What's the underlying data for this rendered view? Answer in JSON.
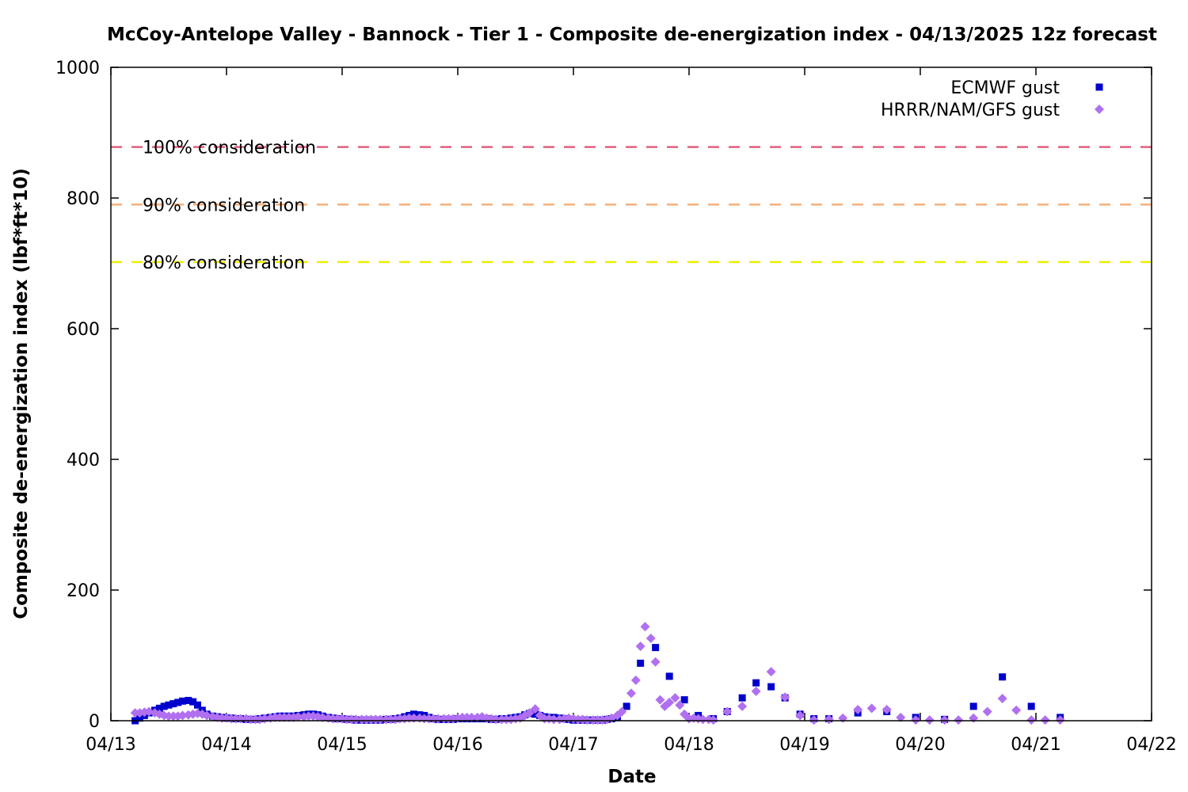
{
  "chart_data": {
    "type": "scatter",
    "title": "McCoy-Antelope Valley - Bannock - Tier 1 - Composite de-energization index - 04/13/2025 12z forecast",
    "xlabel": "Date",
    "ylabel": "Composite de-energization index (lbf*ft*10)",
    "xlim": [
      "04/13",
      "04/22"
    ],
    "ylim": [
      0,
      1000
    ],
    "x_ticks": [
      "04/13",
      "04/14",
      "04/15",
      "04/16",
      "04/17",
      "04/18",
      "04/19",
      "04/20",
      "04/21",
      "04/22"
    ],
    "y_ticks": [
      0,
      200,
      400,
      600,
      800,
      1000
    ],
    "legend_position": "top-right",
    "x_units": "days after 04/13 00z",
    "reference_lines": [
      {
        "label": "100% consideration",
        "value": 878,
        "color": "#e0607e"
      },
      {
        "label": "90% consideration",
        "value": 790,
        "color": "#f5b07a"
      },
      {
        "label": "80% consideration",
        "value": 702,
        "color": "#eeee00"
      }
    ],
    "series": [
      {
        "name": "ECMWF gust",
        "marker": "square",
        "color": "#0000cc",
        "points": [
          [
            0.21,
            0
          ],
          [
            0.25,
            4
          ],
          [
            0.29,
            8
          ],
          [
            0.33,
            12
          ],
          [
            0.38,
            16
          ],
          [
            0.42,
            19
          ],
          [
            0.46,
            22
          ],
          [
            0.5,
            24
          ],
          [
            0.54,
            26
          ],
          [
            0.58,
            28
          ],
          [
            0.62,
            30
          ],
          [
            0.67,
            31
          ],
          [
            0.71,
            29
          ],
          [
            0.75,
            24
          ],
          [
            0.79,
            16
          ],
          [
            0.83,
            10
          ],
          [
            0.88,
            7
          ],
          [
            0.92,
            6
          ],
          [
            0.96,
            5
          ],
          [
            1.0,
            4
          ],
          [
            1.04,
            4
          ],
          [
            1.08,
            3
          ],
          [
            1.12,
            3
          ],
          [
            1.17,
            2
          ],
          [
            1.21,
            2
          ],
          [
            1.25,
            2
          ],
          [
            1.29,
            3
          ],
          [
            1.33,
            4
          ],
          [
            1.38,
            5
          ],
          [
            1.42,
            6
          ],
          [
            1.46,
            7
          ],
          [
            1.5,
            7
          ],
          [
            1.54,
            7
          ],
          [
            1.58,
            7
          ],
          [
            1.62,
            8
          ],
          [
            1.67,
            9
          ],
          [
            1.71,
            10
          ],
          [
            1.75,
            10
          ],
          [
            1.79,
            9
          ],
          [
            1.83,
            7
          ],
          [
            1.88,
            5
          ],
          [
            1.92,
            4
          ],
          [
            1.96,
            3
          ],
          [
            2.0,
            3
          ],
          [
            2.04,
            2
          ],
          [
            2.08,
            2
          ],
          [
            2.12,
            1
          ],
          [
            2.17,
            1
          ],
          [
            2.21,
            1
          ],
          [
            2.25,
            1
          ],
          [
            2.29,
            1
          ],
          [
            2.33,
            1
          ],
          [
            2.38,
            2
          ],
          [
            2.42,
            2
          ],
          [
            2.46,
            3
          ],
          [
            2.5,
            4
          ],
          [
            2.54,
            6
          ],
          [
            2.58,
            8
          ],
          [
            2.62,
            10
          ],
          [
            2.67,
            9
          ],
          [
            2.71,
            8
          ],
          [
            2.75,
            5
          ],
          [
            2.79,
            3
          ],
          [
            2.83,
            2
          ],
          [
            2.88,
            2
          ],
          [
            2.92,
            2
          ],
          [
            2.96,
            2
          ],
          [
            3.0,
            3
          ],
          [
            3.04,
            3
          ],
          [
            3.08,
            3
          ],
          [
            3.12,
            3
          ],
          [
            3.17,
            3
          ],
          [
            3.21,
            3
          ],
          [
            3.25,
            3
          ],
          [
            3.29,
            2
          ],
          [
            3.33,
            2
          ],
          [
            3.38,
            3
          ],
          [
            3.42,
            3
          ],
          [
            3.46,
            4
          ],
          [
            3.5,
            5
          ],
          [
            3.54,
            6
          ],
          [
            3.58,
            9
          ],
          [
            3.62,
            11
          ],
          [
            3.67,
            10
          ],
          [
            3.71,
            8
          ],
          [
            3.75,
            6
          ],
          [
            3.79,
            5
          ],
          [
            3.83,
            5
          ],
          [
            3.88,
            4
          ],
          [
            3.92,
            3
          ],
          [
            3.96,
            2
          ],
          [
            4.0,
            1
          ],
          [
            4.04,
            1
          ],
          [
            4.08,
            1
          ],
          [
            4.12,
            1
          ],
          [
            4.17,
            1
          ],
          [
            4.21,
            1
          ],
          [
            4.25,
            1
          ],
          [
            4.29,
            2
          ],
          [
            4.33,
            3
          ],
          [
            4.38,
            5
          ],
          [
            4.46,
            22
          ],
          [
            4.58,
            88
          ],
          [
            4.71,
            112
          ],
          [
            4.83,
            68
          ],
          [
            4.96,
            32
          ],
          [
            5.08,
            8
          ],
          [
            5.21,
            3
          ],
          [
            5.33,
            14
          ],
          [
            5.46,
            35
          ],
          [
            5.58,
            58
          ],
          [
            5.71,
            52
          ],
          [
            5.83,
            35
          ],
          [
            5.96,
            10
          ],
          [
            6.08,
            3
          ],
          [
            6.21,
            3
          ],
          [
            6.46,
            12
          ],
          [
            6.71,
            14
          ],
          [
            6.96,
            5
          ],
          [
            7.21,
            2
          ],
          [
            7.46,
            22
          ],
          [
            7.71,
            67
          ],
          [
            7.96,
            22
          ],
          [
            8.21,
            5
          ]
        ]
      },
      {
        "name": "HRRR/NAM/GFS gust",
        "marker": "diamond",
        "color": "#b070f0",
        "points": [
          [
            0.21,
            12
          ],
          [
            0.25,
            12
          ],
          [
            0.29,
            13
          ],
          [
            0.33,
            14
          ],
          [
            0.38,
            12
          ],
          [
            0.42,
            10
          ],
          [
            0.46,
            8
          ],
          [
            0.5,
            7
          ],
          [
            0.54,
            7
          ],
          [
            0.58,
            7
          ],
          [
            0.62,
            8
          ],
          [
            0.67,
            9
          ],
          [
            0.71,
            10
          ],
          [
            0.75,
            11
          ],
          [
            0.79,
            10
          ],
          [
            0.83,
            8
          ],
          [
            0.88,
            6
          ],
          [
            0.92,
            5
          ],
          [
            0.96,
            4
          ],
          [
            1.0,
            4
          ],
          [
            1.04,
            3
          ],
          [
            1.08,
            3
          ],
          [
            1.12,
            3
          ],
          [
            1.17,
            3
          ],
          [
            1.21,
            2
          ],
          [
            1.25,
            2
          ],
          [
            1.29,
            2
          ],
          [
            1.33,
            3
          ],
          [
            1.38,
            4
          ],
          [
            1.42,
            5
          ],
          [
            1.46,
            5
          ],
          [
            1.5,
            5
          ],
          [
            1.54,
            5
          ],
          [
            1.58,
            5
          ],
          [
            1.62,
            6
          ],
          [
            1.67,
            6
          ],
          [
            1.71,
            7
          ],
          [
            1.75,
            7
          ],
          [
            1.79,
            6
          ],
          [
            1.83,
            5
          ],
          [
            1.88,
            4
          ],
          [
            1.92,
            3
          ],
          [
            1.96,
            3
          ],
          [
            2.0,
            3
          ],
          [
            2.04,
            2
          ],
          [
            2.08,
            2
          ],
          [
            2.12,
            2
          ],
          [
            2.17,
            2
          ],
          [
            2.21,
            2
          ],
          [
            2.25,
            2
          ],
          [
            2.29,
            2
          ],
          [
            2.33,
            2
          ],
          [
            2.38,
            2
          ],
          [
            2.42,
            2
          ],
          [
            2.46,
            2
          ],
          [
            2.5,
            3
          ],
          [
            2.54,
            3
          ],
          [
            2.58,
            4
          ],
          [
            2.62,
            4
          ],
          [
            2.67,
            4
          ],
          [
            2.71,
            3
          ],
          [
            2.75,
            3
          ],
          [
            2.79,
            3
          ],
          [
            2.83,
            3
          ],
          [
            2.88,
            3
          ],
          [
            2.92,
            3
          ],
          [
            2.96,
            3
          ],
          [
            3.0,
            4
          ],
          [
            3.04,
            5
          ],
          [
            3.08,
            5
          ],
          [
            3.12,
            5
          ],
          [
            3.17,
            5
          ],
          [
            3.21,
            6
          ],
          [
            3.25,
            4
          ],
          [
            3.29,
            3
          ],
          [
            3.33,
            2
          ],
          [
            3.38,
            2
          ],
          [
            3.42,
            2
          ],
          [
            3.46,
            2
          ],
          [
            3.5,
            3
          ],
          [
            3.54,
            4
          ],
          [
            3.58,
            8
          ],
          [
            3.62,
            12
          ],
          [
            3.67,
            18
          ],
          [
            3.71,
            8
          ],
          [
            3.75,
            3
          ],
          [
            3.79,
            3
          ],
          [
            3.83,
            2
          ],
          [
            3.88,
            2
          ],
          [
            3.92,
            3
          ],
          [
            3.96,
            4
          ],
          [
            4.0,
            3
          ],
          [
            4.04,
            2
          ],
          [
            4.08,
            2
          ],
          [
            4.12,
            1
          ],
          [
            4.17,
            1
          ],
          [
            4.21,
            1
          ],
          [
            4.25,
            1
          ],
          [
            4.29,
            2
          ],
          [
            4.33,
            4
          ],
          [
            4.38,
            8
          ],
          [
            4.42,
            14
          ],
          [
            4.5,
            42
          ],
          [
            4.54,
            62
          ],
          [
            4.58,
            114
          ],
          [
            4.62,
            144
          ],
          [
            4.67,
            126
          ],
          [
            4.71,
            90
          ],
          [
            4.75,
            32
          ],
          [
            4.79,
            22
          ],
          [
            4.83,
            28
          ],
          [
            4.88,
            35
          ],
          [
            4.92,
            24
          ],
          [
            4.96,
            10
          ],
          [
            5.0,
            3
          ],
          [
            5.04,
            4
          ],
          [
            5.08,
            3
          ],
          [
            5.12,
            2
          ],
          [
            5.17,
            2
          ],
          [
            5.21,
            1
          ],
          [
            5.33,
            14
          ],
          [
            5.46,
            22
          ],
          [
            5.58,
            45
          ],
          [
            5.71,
            75
          ],
          [
            5.83,
            36
          ],
          [
            5.96,
            8
          ],
          [
            6.08,
            1
          ],
          [
            6.21,
            2
          ],
          [
            6.33,
            4
          ],
          [
            6.46,
            17
          ],
          [
            6.58,
            19
          ],
          [
            6.71,
            17
          ],
          [
            6.83,
            5
          ],
          [
            6.96,
            1
          ],
          [
            7.08,
            1
          ],
          [
            7.21,
            1
          ],
          [
            7.33,
            1
          ],
          [
            7.46,
            4
          ],
          [
            7.58,
            14
          ],
          [
            7.71,
            34
          ],
          [
            7.83,
            16
          ],
          [
            7.96,
            1
          ],
          [
            8.08,
            1
          ],
          [
            8.21,
            1
          ]
        ]
      }
    ]
  }
}
